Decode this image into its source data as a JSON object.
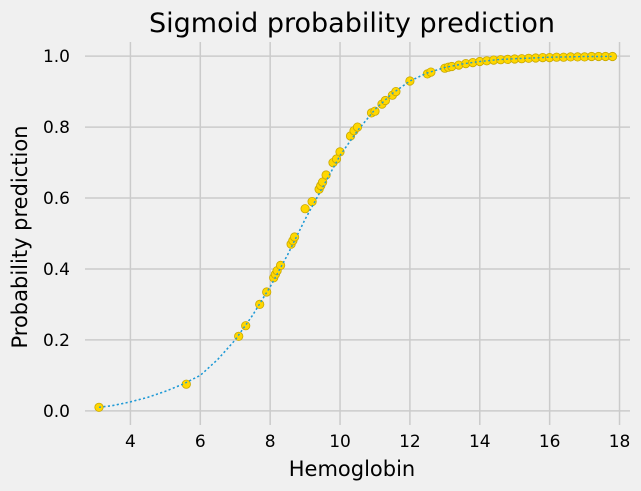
{
  "chart_data": {
    "type": "scatter",
    "title": "Sigmoid probability prediction",
    "xlabel": "Hemoglobin",
    "ylabel": "Probability prediction",
    "xlim": [
      2.7,
      18.3
    ],
    "ylim": [
      -0.04,
      1.04
    ],
    "xticks": [
      4,
      6,
      8,
      10,
      12,
      14,
      16,
      18
    ],
    "yticks": [
      0.0,
      0.2,
      0.4,
      0.6,
      0.8,
      1.0
    ],
    "xtick_labels": [
      "4",
      "6",
      "8",
      "10",
      "12",
      "14",
      "16",
      "18"
    ],
    "ytick_labels": [
      "0.0",
      "0.2",
      "0.4",
      "0.6",
      "0.8",
      "1.0"
    ],
    "grid": true,
    "colors": {
      "background": "#f0f0f0",
      "points": "#ffd700",
      "point_edge": "#c9a800",
      "curve": "#1f9ad6",
      "grid": "#cbcbcb"
    },
    "curve": {
      "style": "dotted",
      "x": [
        3.1,
        3.5,
        4.0,
        4.5,
        5.0,
        5.5,
        6.0,
        6.5,
        7.0,
        7.5,
        8.0,
        8.5,
        9.0,
        9.5,
        10.0,
        10.5,
        11.0,
        11.5,
        12.0,
        12.5,
        13.0,
        13.5,
        14.0,
        14.5,
        15.0,
        15.5,
        16.0,
        16.5,
        17.0,
        17.5,
        17.8
      ],
      "y": [
        0.01,
        0.015,
        0.025,
        0.038,
        0.055,
        0.075,
        0.1,
        0.145,
        0.2,
        0.27,
        0.35,
        0.44,
        0.54,
        0.63,
        0.72,
        0.79,
        0.85,
        0.895,
        0.93,
        0.953,
        0.968,
        0.978,
        0.985,
        0.99,
        0.993,
        0.995,
        0.997,
        0.998,
        0.999,
        0.999,
        0.9995
      ]
    },
    "points": {
      "x": [
        3.1,
        5.6,
        7.1,
        7.3,
        7.7,
        7.9,
        8.1,
        8.15,
        8.2,
        8.3,
        8.6,
        8.65,
        8.7,
        9.0,
        9.2,
        9.4,
        9.45,
        9.5,
        9.6,
        9.8,
        9.9,
        10.0,
        10.3,
        10.4,
        10.5,
        10.9,
        11.0,
        11.2,
        11.3,
        11.5,
        11.6,
        12.0,
        12.5,
        12.6,
        13.0,
        13.1,
        13.2,
        13.4,
        13.6,
        13.8,
        14.0,
        14.2,
        14.4,
        14.6,
        14.8,
        15.0,
        15.2,
        15.4,
        15.6,
        15.8,
        16.0,
        16.2,
        16.4,
        16.6,
        16.8,
        17.0,
        17.2,
        17.4,
        17.6,
        17.8
      ],
      "y": [
        0.01,
        0.075,
        0.21,
        0.24,
        0.3,
        0.335,
        0.375,
        0.385,
        0.395,
        0.41,
        0.47,
        0.48,
        0.49,
        0.57,
        0.59,
        0.625,
        0.635,
        0.645,
        0.665,
        0.7,
        0.71,
        0.73,
        0.775,
        0.79,
        0.8,
        0.84,
        0.845,
        0.865,
        0.875,
        0.89,
        0.9,
        0.93,
        0.95,
        0.955,
        0.966,
        0.969,
        0.971,
        0.975,
        0.979,
        0.982,
        0.985,
        0.987,
        0.989,
        0.99,
        0.991,
        0.992,
        0.993,
        0.994,
        0.995,
        0.996,
        0.996,
        0.997,
        0.997,
        0.998,
        0.998,
        0.998,
        0.999,
        0.999,
        0.999,
        0.999
      ]
    }
  }
}
